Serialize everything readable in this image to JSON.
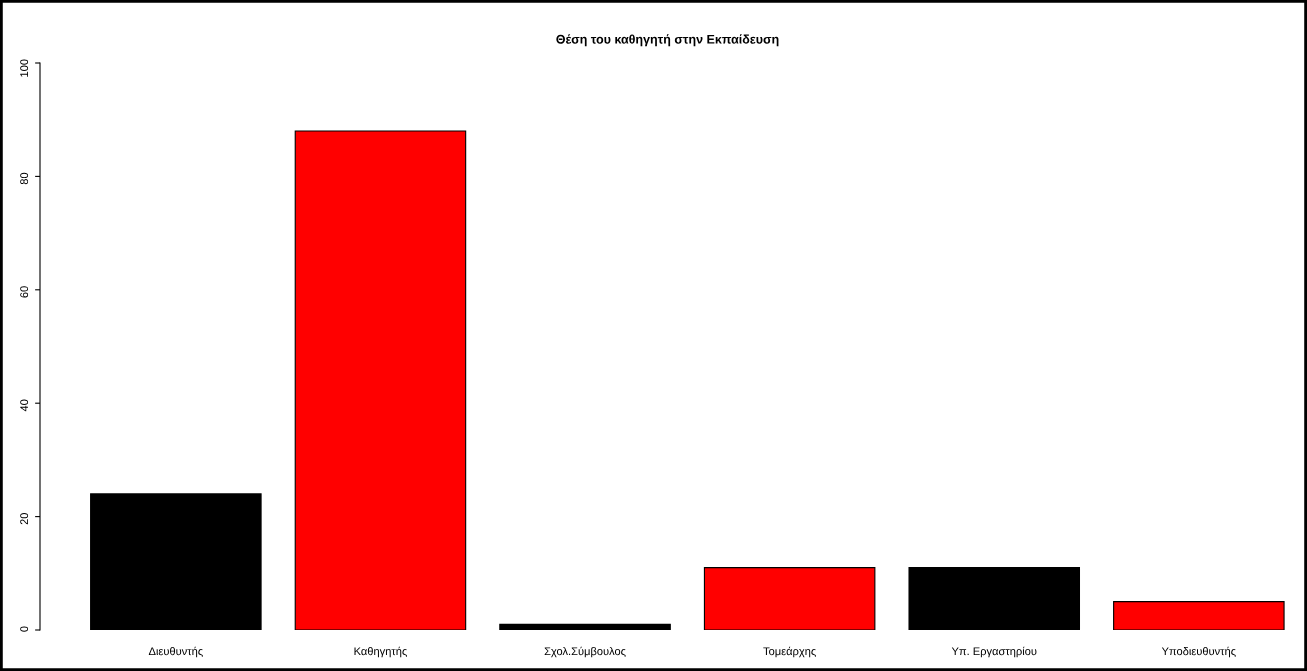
{
  "chart_data": {
    "type": "bar",
    "title": "Θέση του καθηγητή στην Εκπαίδευση",
    "categories": [
      "Διευθυντής",
      "Καθηγητής",
      "Σχολ.Σύμβουλος",
      "Τομεάρχης",
      "Υπ. Εργαστηρίου",
      "Υποδιευθυντής"
    ],
    "values": [
      24,
      88,
      1,
      11,
      11,
      5
    ],
    "colors": [
      "#000000",
      "#ff0000",
      "#000000",
      "#ff0000",
      "#000000",
      "#ff0000"
    ],
    "ylim": [
      0,
      100
    ],
    "yticks": [
      0,
      20,
      40,
      60,
      80,
      100
    ],
    "grid": false,
    "legend": false
  }
}
